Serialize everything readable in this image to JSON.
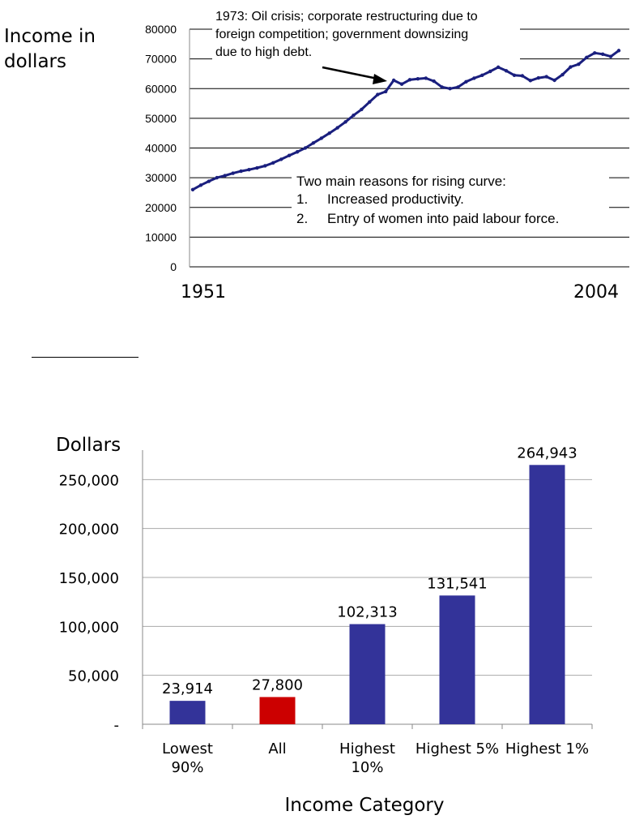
{
  "chart_data": [
    {
      "type": "line",
      "ylabel": "Income in dollars",
      "ylabel_lines": [
        "Income in",
        "dollars"
      ],
      "ylim": [
        0,
        80000
      ],
      "yticks": [
        "0",
        "10000",
        "20000",
        "30000",
        "40000",
        "50000",
        "60000",
        "70000",
        "80000"
      ],
      "ytick_values": [
        0,
        10000,
        20000,
        30000,
        40000,
        50000,
        60000,
        70000,
        80000
      ],
      "xlabels": [
        "1951",
        "2004"
      ],
      "grid": true,
      "x": [
        1951,
        1952,
        1953,
        1954,
        1955,
        1956,
        1957,
        1958,
        1959,
        1960,
        1961,
        1962,
        1963,
        1964,
        1965,
        1966,
        1967,
        1968,
        1969,
        1970,
        1971,
        1972,
        1973,
        1974,
        1975,
        1976,
        1977,
        1978,
        1979,
        1980,
        1981,
        1982,
        1983,
        1984,
        1985,
        1986,
        1987,
        1988,
        1989,
        1990,
        1991,
        1992,
        1993,
        1994,
        1995,
        1996,
        1997,
        1998,
        1999,
        2000,
        2001,
        2002,
        2003,
        2004
      ],
      "series": [
        {
          "values": [
            26000,
            27500,
            28800,
            30000,
            30700,
            31500,
            32200,
            32700,
            33300,
            34000,
            35000,
            36200,
            37500,
            38700,
            40000,
            41700,
            43300,
            45000,
            46800,
            48800,
            51000,
            53000,
            55500,
            58000,
            59000,
            62800,
            61500,
            63000,
            63300,
            63500,
            62500,
            60500,
            60000,
            60500,
            62300,
            63500,
            64500,
            65800,
            67200,
            66000,
            64500,
            64300,
            62700,
            63600,
            64000,
            62800,
            64700,
            67300,
            68200,
            70500,
            72000,
            71600,
            70800,
            72800
          ]
        }
      ],
      "annotations": [
        {
          "lines": [
            "1973: Oil crisis; corporate restructuring due to",
            "foreign competition; government downsizing",
            "due to high debt."
          ]
        },
        {
          "lines": [
            "Two main reasons for rising curve:",
            "1.",
            "Increased productivity.",
            "2.",
            "Entry of women into paid labour force."
          ]
        }
      ],
      "line_color": "#1a1f7e"
    },
    {
      "type": "bar",
      "ylabel": "Dollars",
      "xlabel": "Income Category",
      "ylim": [
        0,
        300000
      ],
      "yticks": [
        "-",
        "50,000",
        "100,000",
        "150,000",
        "200,000",
        "250,000"
      ],
      "ytick_values": [
        0,
        50000,
        100000,
        150000,
        200000,
        250000
      ],
      "categories": [
        "Lowest 90%",
        "All",
        "Highest 10%",
        "Highest 5%",
        "Highest 1%"
      ],
      "category_lines": [
        [
          "Lowest",
          "90%"
        ],
        [
          "All"
        ],
        [
          "Highest",
          "10%"
        ],
        [
          "Highest 5%"
        ],
        [
          "Highest 1%"
        ]
      ],
      "values": [
        23914,
        27800,
        102313,
        131541,
        264943
      ],
      "data_labels": [
        "23,914",
        "27,800",
        "102,313",
        "131,541",
        "264,943"
      ],
      "colors": [
        "#333399",
        "#cc0000",
        "#333399",
        "#333399",
        "#333399"
      ],
      "grid": true
    }
  ]
}
